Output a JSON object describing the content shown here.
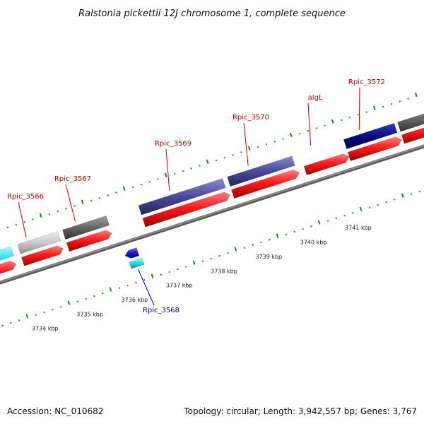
{
  "title": "Ralstonia pickettii 12J chromosome 1, complete sequence",
  "footer": {
    "accession": "Accession: NC_010682",
    "summary": "Topology: circular; Length: 3,942,557 bp; Genes: 3,767"
  },
  "colors": {
    "backbone": "#8c8c8c",
    "tick": "#1f8a1f",
    "cds": "#ff1a1a",
    "label_forward": "#cc0000",
    "label_reverse": "#0000aa",
    "gene_slate": "#4a4a9a",
    "gene_navy": "#0a0a80",
    "gene_grey": "#666666",
    "gene_lightgrey": "#c8c8c8",
    "gene_cyan": "#22e0e0",
    "gene_blue": "#1a1ad0"
  },
  "kbp_labels": [
    "3734 kbp",
    "3735 kbp",
    "3736 kbp",
    "3737 kbp",
    "3738 kbp",
    "3739 kbp",
    "3740 kbp",
    "3741 kbp"
  ],
  "genes": [
    {
      "label": "Rpic_3566",
      "strand": "forward"
    },
    {
      "label": "Rpic_3567",
      "strand": "forward"
    },
    {
      "label": "Rpic_3569",
      "strand": "forward"
    },
    {
      "label": "Rpic_3570",
      "strand": "forward"
    },
    {
      "label": "algL",
      "strand": "forward"
    },
    {
      "label": "Rpic_3572",
      "strand": "forward"
    },
    {
      "label": "Rpic_3568",
      "strand": "reverse"
    }
  ]
}
